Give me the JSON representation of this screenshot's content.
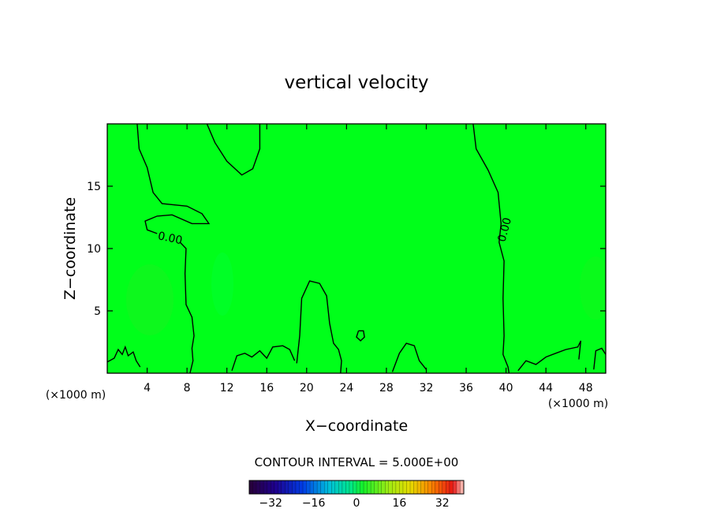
{
  "chart_data": {
    "type": "contour",
    "title": "vertical velocity",
    "xlabel": "X−coordinate",
    "ylabel": "Z−coordinate",
    "x_unit_label_left": "(×1000 m)",
    "x_unit_label_right": "(×1000 m)",
    "xlim": [
      0,
      50
    ],
    "ylim": [
      0,
      20
    ],
    "x_ticks": [
      4,
      8,
      12,
      16,
      20,
      24,
      28,
      32,
      36,
      40,
      44,
      48
    ],
    "y_ticks": [
      5,
      10,
      15
    ],
    "x_tick_labels": [
      "4",
      "8",
      "12",
      "16",
      "20",
      "24",
      "28",
      "32",
      "36",
      "40",
      "44",
      "48"
    ],
    "y_tick_labels": [
      "5",
      "10",
      "15"
    ],
    "contour_interval_text": "CONTOUR INTERVAL = 5.000E+00",
    "contour_levels_labeled": [
      "0.00",
      "0.00"
    ],
    "field_color": "#00ff1a",
    "colorbar": {
      "min": -40,
      "max": 40,
      "tick_values": [
        -32,
        -16,
        0,
        16,
        32
      ],
      "tick_labels": [
        "−32",
        "−16",
        "0",
        "16",
        "32"
      ]
    },
    "contours": [
      {
        "name": "zero-contour-left-upper",
        "points": [
          [
            3.0,
            20
          ],
          [
            3.2,
            18.0
          ],
          [
            4.0,
            16.5
          ],
          [
            4.6,
            14.5
          ],
          [
            5.5,
            13.6
          ],
          [
            8.0,
            13.4
          ],
          [
            9.5,
            12.8
          ],
          [
            10.2,
            12.0
          ],
          [
            8.5,
            12.0
          ],
          [
            6.5,
            12.7
          ],
          [
            5.0,
            12.6
          ],
          [
            3.8,
            12.2
          ],
          [
            4.0,
            11.5
          ],
          [
            5.0,
            11.2
          ]
        ]
      },
      {
        "name": "zero-contour-left-lower",
        "points": [
          [
            7.3,
            10.5
          ],
          [
            7.9,
            10.0
          ],
          [
            7.8,
            8.0
          ],
          [
            7.9,
            5.5
          ],
          [
            8.5,
            4.5
          ],
          [
            8.7,
            3.0
          ],
          [
            8.5,
            2.0
          ],
          [
            8.6,
            1.0
          ],
          [
            8.3,
            0
          ]
        ]
      },
      {
        "name": "zero-contour-top-lobe",
        "points": [
          [
            10.0,
            20
          ],
          [
            10.8,
            18.5
          ],
          [
            12.0,
            17.0
          ],
          [
            13.5,
            15.9
          ],
          [
            14.6,
            16.4
          ],
          [
            15.3,
            18.0
          ],
          [
            15.3,
            20
          ]
        ]
      },
      {
        "name": "zero-contour-middle-lobe",
        "points": [
          [
            19.0,
            0.8
          ],
          [
            19.3,
            3.0
          ],
          [
            19.5,
            6.0
          ],
          [
            20.3,
            7.4
          ],
          [
            21.3,
            7.2
          ],
          [
            22.0,
            6.2
          ],
          [
            22.3,
            4.0
          ],
          [
            22.7,
            2.4
          ],
          [
            23.2,
            1.9
          ],
          [
            23.5,
            1.0
          ],
          [
            23.4,
            0
          ]
        ]
      },
      {
        "name": "zero-contour-right",
        "points": [
          [
            36.7,
            20
          ],
          [
            37.0,
            18.0
          ],
          [
            38.2,
            16.3
          ],
          [
            39.2,
            14.5
          ],
          [
            39.5,
            12.0
          ],
          [
            39.3,
            10.5
          ],
          [
            39.8,
            9.0
          ],
          [
            39.7,
            6.0
          ],
          [
            39.8,
            3.0
          ],
          [
            39.7,
            1.5
          ],
          [
            40.2,
            0.5
          ],
          [
            40.3,
            0
          ]
        ]
      },
      {
        "name": "small-closed-contour",
        "points": [
          [
            25.2,
            3.4
          ],
          [
            25.7,
            3.4
          ],
          [
            25.8,
            2.9
          ],
          [
            25.4,
            2.6
          ],
          [
            25.0,
            2.9
          ],
          [
            25.2,
            3.4
          ]
        ]
      },
      {
        "name": "surface-contours-left",
        "points": [
          [
            0.0,
            0.9
          ],
          [
            0.7,
            1.2
          ],
          [
            1.1,
            1.9
          ],
          [
            1.5,
            1.5
          ],
          [
            1.8,
            2.1
          ],
          [
            2.1,
            1.4
          ],
          [
            2.6,
            1.7
          ],
          [
            2.9,
            1.0
          ],
          [
            3.3,
            0.5
          ]
        ]
      },
      {
        "name": "surface-contours-mid",
        "points": [
          [
            12.5,
            0.2
          ],
          [
            13.0,
            1.4
          ],
          [
            13.8,
            1.6
          ],
          [
            14.5,
            1.3
          ],
          [
            15.3,
            1.8
          ],
          [
            16.0,
            1.2
          ],
          [
            16.6,
            2.1
          ],
          [
            17.6,
            2.2
          ],
          [
            18.3,
            1.9
          ],
          [
            18.8,
            1.0
          ]
        ]
      },
      {
        "name": "surface-contours-mid2",
        "points": [
          [
            28.6,
            0.1
          ],
          [
            29.3,
            1.6
          ],
          [
            30.0,
            2.4
          ],
          [
            30.8,
            2.2
          ],
          [
            31.3,
            1.0
          ],
          [
            32.0,
            0.3
          ]
        ]
      },
      {
        "name": "surface-contours-right",
        "points": [
          [
            41.2,
            0.2
          ],
          [
            42.0,
            1.0
          ],
          [
            43.0,
            0.7
          ],
          [
            44.0,
            1.3
          ],
          [
            45.0,
            1.6
          ],
          [
            46.0,
            1.9
          ],
          [
            47.2,
            2.1
          ],
          [
            47.5,
            2.6
          ],
          [
            47.3,
            1.1
          ]
        ]
      },
      {
        "name": "surface-contours-far-right",
        "points": [
          [
            48.8,
            0.3
          ],
          [
            49.0,
            1.8
          ],
          [
            49.6,
            2.0
          ],
          [
            50.0,
            1.5
          ]
        ]
      }
    ],
    "contour_label_positions": [
      {
        "text": "0.00",
        "x": 6.3,
        "y": 10.8,
        "rotate": 12
      },
      {
        "text": "0.00",
        "x": 39.9,
        "y": 11.5,
        "rotate": -75
      }
    ]
  }
}
